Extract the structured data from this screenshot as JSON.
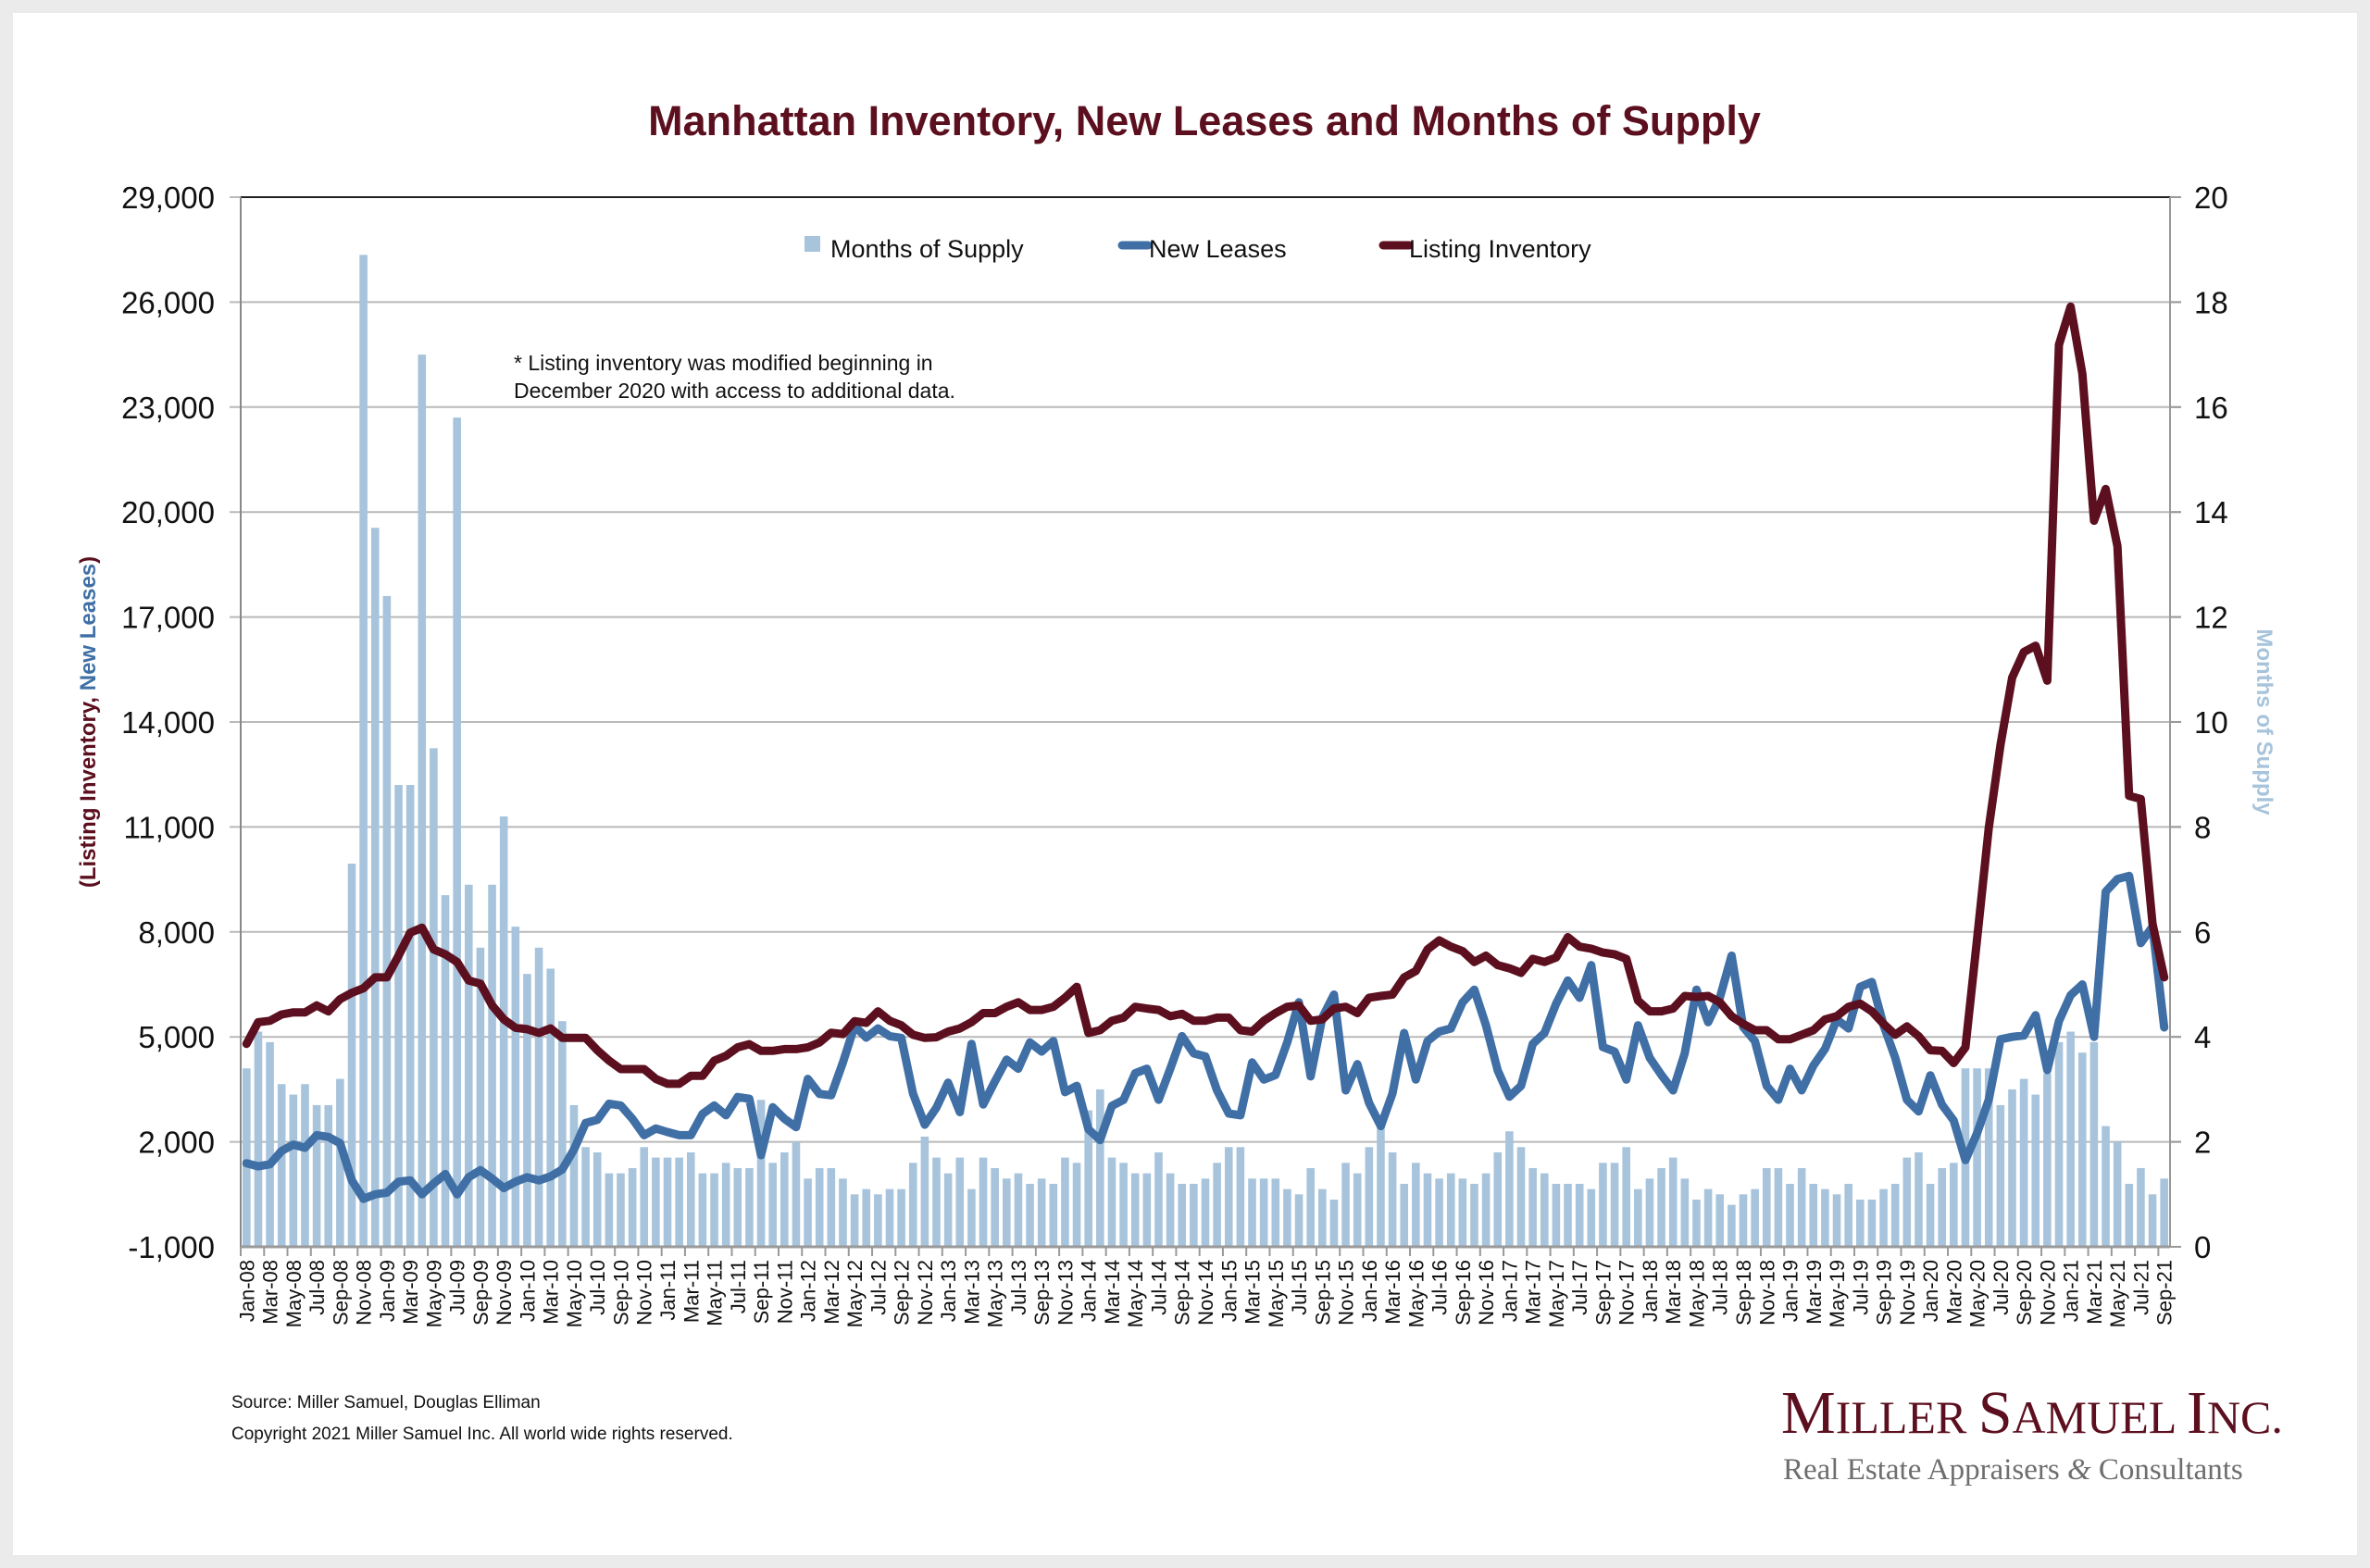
{
  "colors": {
    "title": "#5c0f1e",
    "listing_inventory": "#5c0f1e",
    "new_leases": "#3f6fa5",
    "months_of_supply": "#a7c4dc",
    "months_axis_label": "#a7c4dc",
    "gridline": "#b9b9b9",
    "logo_main": "#5c0f1e"
  },
  "chart_data": {
    "type": "bar+line",
    "title": "Manhattan Inventory, New Leases and Months of Supply",
    "ylabel_left_parts": [
      {
        "text": "(Listing Inventory, ",
        "series": "listing_inventory"
      },
      {
        "text": "New Leases",
        "series": "new_leases"
      },
      {
        "text": ")",
        "series": "listing_inventory"
      }
    ],
    "ylabel_right": "Months of Supply",
    "ylim_left": [
      -1000,
      29000
    ],
    "yticks_left": [
      -1000,
      2000,
      5000,
      8000,
      11000,
      14000,
      17000,
      20000,
      23000,
      26000,
      29000
    ],
    "ytick_labels_left": [
      "-1,000",
      "2,000",
      "5,000",
      "8,000",
      "11,000",
      "14,000",
      "17,000",
      "20,000",
      "23,000",
      "26,000",
      "29,000"
    ],
    "ylim_right": [
      0,
      20
    ],
    "yticks_right": [
      0,
      2,
      4,
      6,
      8,
      10,
      12,
      14,
      16,
      18,
      20
    ],
    "ytick_labels_right": [
      "0",
      "2",
      "4",
      "6",
      "8",
      "10",
      "12",
      "14",
      "16",
      "18",
      "20"
    ],
    "grid": true,
    "legend_position": "top-center",
    "legend": [
      "Months of Supply",
      "New Leases",
      "Listing Inventory"
    ],
    "x_start": "Jan-08",
    "x_end": "Sep-21",
    "x_frequency": "monthly",
    "xtick_labels": [
      "Jan-08",
      "Mar-08",
      "May-08",
      "Jul-08",
      "Sep-08",
      "Nov-08",
      "Jan-09",
      "Mar-09",
      "May-09",
      "Jul-09",
      "Sep-09",
      "Nov-09",
      "Jan-10",
      "Mar-10",
      "May-10",
      "Jul-10",
      "Sep-10",
      "Nov-10",
      "Jan-11",
      "Mar-11",
      "May-11",
      "Jul-11",
      "Sep-11",
      "Nov-11",
      "Jan-12",
      "Mar-12",
      "May-12",
      "Jul-12",
      "Sep-12",
      "Nov-12",
      "Jan-13",
      "Mar-13",
      "May-13",
      "Jul-13",
      "Sep-13",
      "Nov-13",
      "Jan-14",
      "Mar-14",
      "May-14",
      "Jul-14",
      "Sep-14",
      "Nov-14",
      "Jan-15",
      "Mar-15",
      "May-15",
      "Jul-15",
      "Sep-15",
      "Nov-15",
      "Jan-16",
      "Mar-16",
      "May-16",
      "Jul-16",
      "Sep-16",
      "Nov-16",
      "Jan-17",
      "Mar-17",
      "May-17",
      "Jul-17",
      "Sep-17",
      "Nov-17",
      "Jan-18",
      "Mar-18",
      "May-18",
      "Jul-18",
      "Sep-18",
      "Nov-18",
      "Jan-19",
      "Mar-19",
      "May-19",
      "Jul-19",
      "Sep-19",
      "Nov-19",
      "Jan-20",
      "Mar-20",
      "May-20",
      "Jul-20",
      "Sep-20",
      "Nov-20",
      "Jan-21",
      "Mar-21",
      "May-21",
      "Jul-21",
      "Sep-21"
    ],
    "series": [
      {
        "name": "Months of Supply",
        "key": "months_of_supply",
        "type": "bar",
        "axis": "right",
        "values": [
          3.4,
          4.1,
          3.9,
          3.1,
          2.9,
          3.1,
          2.7,
          2.7,
          3.2,
          7.3,
          18.9,
          13.7,
          12.4,
          8.8,
          8.8,
          17.0,
          9.5,
          6.7,
          15.8,
          6.9,
          5.7,
          6.9,
          8.2,
          6.1,
          5.2,
          5.7,
          5.3,
          4.3,
          2.7,
          1.9,
          1.8,
          1.4,
          1.4,
          1.5,
          1.9,
          1.7,
          1.7,
          1.7,
          1.8,
          1.4,
          1.4,
          1.6,
          1.5,
          1.5,
          2.8,
          1.6,
          1.8,
          2.0,
          1.3,
          1.5,
          1.5,
          1.3,
          1.0,
          1.1,
          1.0,
          1.1,
          1.1,
          1.6,
          2.1,
          1.7,
          1.4,
          1.7,
          1.1,
          1.7,
          1.5,
          1.3,
          1.4,
          1.2,
          1.3,
          1.2,
          1.7,
          1.6,
          2.6,
          3.0,
          1.7,
          1.6,
          1.4,
          1.4,
          1.8,
          1.4,
          1.2,
          1.2,
          1.3,
          1.6,
          1.9,
          1.9,
          1.3,
          1.3,
          1.3,
          1.1,
          1.0,
          1.5,
          1.1,
          0.9,
          1.6,
          1.4,
          1.9,
          2.3,
          1.8,
          1.2,
          1.6,
          1.4,
          1.3,
          1.4,
          1.3,
          1.2,
          1.4,
          1.8,
          2.2,
          1.9,
          1.5,
          1.4,
          1.2,
          1.2,
          1.2,
          1.1,
          1.6,
          1.6,
          1.9,
          1.1,
          1.3,
          1.5,
          1.7,
          1.3,
          0.9,
          1.1,
          1.0,
          0.8,
          1.0,
          1.1,
          1.5,
          1.5,
          1.2,
          1.5,
          1.2,
          1.1,
          1.0,
          1.2,
          0.9,
          0.9,
          1.1,
          1.2,
          1.7,
          1.8,
          1.2,
          1.5,
          1.6,
          3.4,
          3.4,
          3.4,
          2.7,
          3.0,
          3.2,
          2.9,
          3.3,
          3.9,
          4.1,
          3.7,
          3.9,
          2.3,
          2.0,
          1.2,
          1.5,
          1.0,
          1.3
        ]
      },
      {
        "name": "New Leases",
        "key": "new_leases",
        "type": "line",
        "axis": "left",
        "values": [
          1390,
          1300,
          1360,
          1740,
          1920,
          1830,
          2190,
          2140,
          1960,
          900,
          370,
          500,
          550,
          860,
          900,
          500,
          810,
          1080,
          500,
          990,
          1190,
          950,
          680,
          860,
          990,
          900,
          1010,
          1210,
          1780,
          2540,
          2630,
          3090,
          3040,
          2660,
          2190,
          2380,
          2280,
          2190,
          2190,
          2800,
          3040,
          2760,
          3280,
          3230,
          1620,
          2990,
          2660,
          2420,
          3800,
          3370,
          3330,
          4270,
          5310,
          4980,
          5240,
          5020,
          4970,
          3380,
          2490,
          2980,
          3690,
          2850,
          4800,
          3070,
          3730,
          4350,
          4090,
          4840,
          4580,
          4880,
          3420,
          3600,
          2360,
          2050,
          3030,
          3200,
          3960,
          4090,
          3200,
          4090,
          5020,
          4530,
          4440,
          3470,
          2810,
          2760,
          4270,
          3780,
          3910,
          4840,
          5990,
          3870,
          5550,
          6210,
          3470,
          4220,
          3110,
          2450,
          3380,
          5110,
          3780,
          4880,
          5150,
          5240,
          5990,
          6350,
          5330,
          4040,
          3290,
          3600,
          4800,
          5110,
          5950,
          6610,
          6120,
          7050,
          4710,
          4580,
          3780,
          5330,
          4400,
          3910,
          3470,
          4530,
          6350,
          5420,
          6120,
          7320,
          5280,
          4880,
          3600,
          3200,
          4090,
          3470,
          4180,
          4660,
          5500,
          5240,
          6430,
          6570,
          5330,
          4400,
          3200,
          2870,
          3900,
          3060,
          2610,
          1480,
          2250,
          3200,
          4930,
          5000,
          5040,
          5620,
          4050,
          5450,
          6190,
          6500,
          5000,
          9150,
          9510,
          9600,
          7680,
          8150,
          5270
        ]
      },
      {
        "name": "Listing Inventory",
        "key": "listing_inventory",
        "type": "line",
        "axis": "left",
        "values": [
          4800,
          5420,
          5460,
          5640,
          5700,
          5700,
          5900,
          5730,
          6080,
          6260,
          6390,
          6700,
          6700,
          7320,
          7980,
          8120,
          7500,
          7360,
          7140,
          6610,
          6520,
          5900,
          5500,
          5260,
          5220,
          5110,
          5240,
          4970,
          4970,
          4970,
          4620,
          4320,
          4080,
          4080,
          4080,
          3800,
          3660,
          3660,
          3890,
          3890,
          4320,
          4460,
          4700,
          4790,
          4600,
          4600,
          4650,
          4650,
          4700,
          4840,
          5120,
          5080,
          5450,
          5400,
          5730,
          5460,
          5330,
          5060,
          4970,
          4990,
          5150,
          5240,
          5420,
          5680,
          5680,
          5860,
          5990,
          5770,
          5770,
          5860,
          6120,
          6430,
          5110,
          5190,
          5460,
          5550,
          5860,
          5810,
          5770,
          5590,
          5660,
          5460,
          5460,
          5550,
          5550,
          5190,
          5150,
          5460,
          5680,
          5860,
          5900,
          5460,
          5500,
          5810,
          5860,
          5680,
          6120,
          6170,
          6210,
          6700,
          6880,
          7500,
          7760,
          7580,
          7450,
          7140,
          7320,
          7050,
          6960,
          6830,
          7230,
          7140,
          7270,
          7850,
          7580,
          7520,
          7410,
          7360,
          7230,
          6040,
          5730,
          5730,
          5810,
          6170,
          6140,
          6170,
          5990,
          5590,
          5370,
          5190,
          5190,
          4930,
          4930,
          5060,
          5190,
          5500,
          5590,
          5860,
          5950,
          5730,
          5370,
          5060,
          5300,
          5020,
          4620,
          4600,
          4250,
          4700,
          7800,
          10970,
          13350,
          15270,
          16000,
          16180,
          15180,
          24780,
          25870,
          23950,
          19750,
          20660,
          19020,
          11890,
          11800,
          8230,
          6700
        ]
      }
    ],
    "annotations": [
      "* Listing inventory was modified beginning in",
      "December 2020 with access to additional data."
    ]
  },
  "footer": {
    "source": "Source: Miller Samuel, Douglas Elliman",
    "copyright": "Copyright 2021 Miller Samuel Inc.  All world wide rights reserved."
  },
  "logo": {
    "name_parts": [
      {
        "text": "M",
        "small": false
      },
      {
        "text": "ILLER ",
        "small": true
      },
      {
        "text": "S",
        "small": false
      },
      {
        "text": "AMUEL ",
        "small": true
      },
      {
        "text": "I",
        "small": false
      },
      {
        "text": "NC.",
        "small": true
      }
    ],
    "tagline_before": "Real Estate Appraisers ",
    "tagline_amp": "&",
    "tagline_after": " Consultants"
  }
}
